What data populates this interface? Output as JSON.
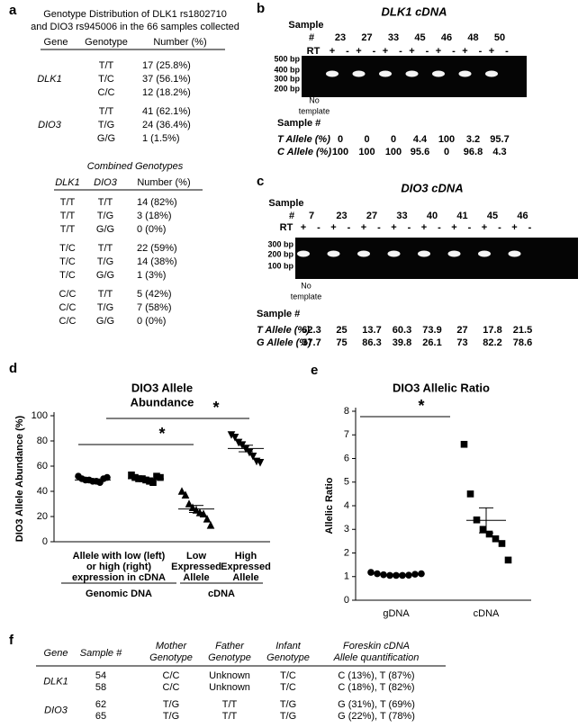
{
  "panel_a": {
    "label": "a",
    "title_lines": [
      "Genotype Distribution of DLK1 rs1802710",
      "and DIO3 rs945006 in the 66 samples collected"
    ],
    "table1": {
      "headers": [
        "Gene",
        "Genotype",
        "Number (%)"
      ],
      "groups": [
        {
          "gene": "DLK1",
          "rows": [
            [
              "T/T",
              "17 (25.8%)"
            ],
            [
              "T/C",
              "37 (56.1%)"
            ],
            [
              "C/C",
              "12 (18.2%)"
            ]
          ]
        },
        {
          "gene": "DIO3",
          "rows": [
            [
              "T/T",
              "41 (62.1%)"
            ],
            [
              "T/G",
              "24 (36.4%)"
            ],
            [
              "G/G",
              "1 (1.5%)"
            ]
          ]
        }
      ]
    },
    "combined_title": "Combined Genotypes",
    "table2": {
      "headers": [
        "DLK1",
        "DIO3",
        "Number (%)"
      ],
      "rows": [
        [
          "T/T",
          "T/T",
          "14 (82%)"
        ],
        [
          "T/T",
          "T/G",
          "3 (18%)"
        ],
        [
          "T/T",
          "G/G",
          "0 (0%)"
        ],
        [
          "T/C",
          "T/T",
          "22 (59%)"
        ],
        [
          "T/C",
          "T/G",
          "14 (38%)"
        ],
        [
          "T/C",
          "G/G",
          "1 (3%)"
        ],
        [
          "C/C",
          "T/T",
          "5 (42%)"
        ],
        [
          "C/C",
          "T/G",
          "7 (58%)"
        ],
        [
          "C/C",
          "G/G",
          "0 (0%)"
        ]
      ]
    }
  },
  "panel_b": {
    "label": "b",
    "title": "DLK1 cDNA",
    "sample_header": [
      "Sample",
      "#"
    ],
    "rt_label": "RT",
    "rt_signs": [
      "+",
      "-"
    ],
    "ladder": [
      "500 bp",
      "400 bp",
      "300 bp",
      "200 bp"
    ],
    "no_template": [
      "No",
      "template"
    ],
    "samples": [
      23,
      27,
      33,
      45,
      46,
      48,
      50
    ],
    "table_header": "Sample #",
    "rows": [
      {
        "label": "T Allele (%)",
        "values": [
          0,
          0,
          0,
          4.4,
          100,
          3.2,
          95.7
        ]
      },
      {
        "label": "C Allele (%)",
        "values": [
          100,
          100,
          100,
          95.6,
          0,
          96.8,
          4.3
        ]
      }
    ]
  },
  "panel_c": {
    "label": "c",
    "title": "DIO3 cDNA",
    "sample_header": [
      "Sample",
      "#"
    ],
    "rt_label": "RT",
    "rt_signs": [
      "+",
      "-"
    ],
    "ladder": [
      "300 bp",
      "200 bp",
      "100 bp"
    ],
    "no_template": [
      "No",
      "template"
    ],
    "samples": [
      7,
      23,
      27,
      33,
      40,
      41,
      45,
      46
    ],
    "table_header": "Sample #",
    "rows": [
      {
        "label": "T Allele (%)",
        "values": [
          62.3,
          25,
          13.7,
          60.3,
          73.9,
          27,
          17.8,
          21.5
        ]
      },
      {
        "label": "G Allele (%)",
        "values": [
          37.7,
          75,
          86.3,
          39.8,
          26.1,
          73,
          82.2,
          78.6
        ]
      }
    ]
  },
  "chart_data": [
    {
      "type": "dot-plot",
      "label": "d",
      "title_lines": [
        "DIO3 Allele",
        "Abundance"
      ],
      "y_label": "DIO3 Allele Abundance (%)",
      "ylim": [
        0,
        100
      ],
      "yticks": [
        0,
        20,
        40,
        60,
        80,
        100
      ],
      "shared_label": [
        "Allele with low (left)",
        "or high (right)",
        "expression in cDNA"
      ],
      "categories": [
        null,
        null,
        [
          "Low",
          "Expressed",
          "Allele"
        ],
        [
          "High",
          "Expressed",
          "Allele"
        ]
      ],
      "group_labels": [
        "Genomic DNA",
        "cDNA"
      ],
      "markers": [
        "circle",
        "square",
        "triangle-up",
        "triangle-down"
      ],
      "color": "#000000",
      "points": [
        [
          52,
          50,
          49,
          49,
          48,
          48,
          47,
          50,
          51
        ],
        [
          53,
          51,
          50,
          50,
          49,
          48,
          47,
          52,
          51
        ],
        [
          40,
          37,
          30,
          27,
          25,
          23,
          22,
          18,
          13
        ],
        [
          85,
          83,
          79,
          77,
          74,
          71,
          68,
          64,
          63
        ]
      ],
      "means": [
        49,
        50,
        26,
        74
      ],
      "sems": [
        0.8,
        0.7,
        2.8,
        2.6
      ],
      "annotations": [
        "*",
        "*"
      ]
    },
    {
      "type": "dot-plot",
      "label": "e",
      "title_lines": [
        "DIO3 Allelic Ratio"
      ],
      "y_label": "Allelic Ratio",
      "ylim": [
        0,
        8
      ],
      "yticks": [
        0,
        1,
        2,
        3,
        4,
        5,
        6,
        7,
        8
      ],
      "categories": [
        "gDNA",
        "cDNA"
      ],
      "markers": [
        "circle",
        "square"
      ],
      "color": "#000000",
      "points": [
        [
          1.18,
          1.12,
          1.08,
          1.05,
          1.05,
          1.05,
          1.06,
          1.1,
          1.12
        ],
        [
          6.6,
          4.5,
          3.4,
          3.0,
          2.8,
          2.6,
          2.4,
          1.7
        ]
      ],
      "means": [
        1.09,
        3.38
      ],
      "sems": [
        0.02,
        0.53
      ],
      "annotations": [
        "*"
      ]
    }
  ],
  "panel_f": {
    "label": "f",
    "headers": [
      [
        "Gene"
      ],
      [
        "Sample #"
      ],
      [
        "Mother",
        "Genotype"
      ],
      [
        "Father",
        "Genotype"
      ],
      [
        "Infant",
        "Genotype"
      ],
      [
        "Foreskin cDNA",
        "Allele quantification"
      ]
    ],
    "groups": [
      {
        "gene": "DLK1",
        "rows": [
          [
            54,
            "C/C",
            "Unknown",
            "T/C",
            "C (13%), T (87%)"
          ],
          [
            58,
            "C/C",
            "Unknown",
            "T/C",
            "C (18%), T (82%)"
          ]
        ]
      },
      {
        "gene": "DIO3",
        "rows": [
          [
            62,
            "T/G",
            "T/T",
            "T/G",
            "G (31%), T (69%)"
          ],
          [
            65,
            "T/G",
            "T/T",
            "T/G",
            "G (22%), T (78%)"
          ]
        ]
      }
    ]
  }
}
